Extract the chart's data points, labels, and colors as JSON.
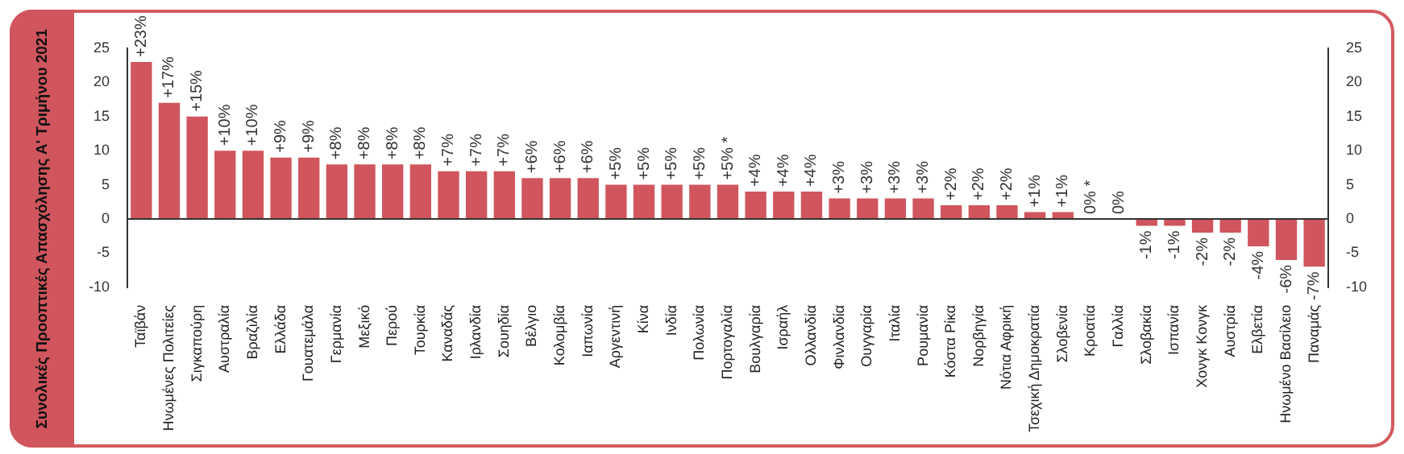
{
  "chart_data": {
    "type": "bar",
    "title": "Συνολικές Προοπτικές Απασχόλησης Α' Τριμήνου 2021",
    "categories": [
      "Ταϊβάν",
      "Ηνωμένες Πολιτείες",
      "Σιγκαπούρη",
      "Αυστραλία",
      "Βραζιλία",
      "Ελλάδα",
      "Γουατεμάλα",
      "Γερμανία",
      "Μεξικό",
      "Περού",
      "Τουρκία",
      "Καναδάς",
      "Ιρλανδία",
      "Σουηδία",
      "Βέλγιο",
      "Κολομβία",
      "Ιαπωνία",
      "Αργεντινή",
      "Κίνα",
      "Ινδία",
      "Πολωνία",
      "Πορτογαλία",
      "Βουλγαρία",
      "Ισραήλ",
      "Ολλανδία",
      "Φινλανδία",
      "Ουγγαρία",
      "Ιταλία",
      "Ρουμανία",
      "Κόστα Ρίκα",
      "Νορβηγία",
      "Νότια Αφρική",
      "Τσεχική Δημοκρατία",
      "Σλοβενία",
      "Κροατία",
      "Γαλλία",
      "Σλοβακία",
      "Ισπανία",
      "Χονγκ Κονγκ",
      "Αυστρία",
      "Ελβετία",
      "Ηνωμένο Βασίλειο",
      "Παναμάς"
    ],
    "values": [
      23,
      17,
      15,
      10,
      10,
      9,
      9,
      8,
      8,
      8,
      8,
      7,
      7,
      7,
      6,
      6,
      6,
      5,
      5,
      5,
      5,
      5,
      4,
      4,
      4,
      3,
      3,
      3,
      3,
      2,
      2,
      2,
      1,
      1,
      0,
      0,
      -1,
      -1,
      -2,
      -2,
      -4,
      -6,
      -7
    ],
    "value_labels": [
      "+23%",
      "+17%",
      "+15%",
      "+10%",
      "+10%",
      "+9%",
      "+9%",
      "+8%",
      "+8%",
      "+8%",
      "+8%",
      "+7%",
      "+7%",
      "+7%",
      "+6%",
      "+6%",
      "+6%",
      "+5%",
      "+5%",
      "+5%",
      "+5%",
      "+5% *",
      "+4%",
      "+4%",
      "+4%",
      "+3%",
      "+3%",
      "+3%",
      "+3%",
      "+2%",
      "+2%",
      "+2%",
      "+1%",
      "+1%",
      "0% *",
      "0%",
      "-1%",
      "-1%",
      "-2%",
      "-2%",
      "-4%",
      "-6%",
      "-7%"
    ],
    "color": "#d0555c",
    "ylim": [
      -10,
      25
    ],
    "yticks": [
      -10,
      -5,
      0,
      5,
      10,
      15,
      20,
      25
    ],
    "y2lim": [
      -10,
      25
    ],
    "y2ticks": [
      -10,
      -5,
      0,
      5,
      10,
      15,
      20,
      25
    ],
    "ref_lines": [
      {
        "axis": "y",
        "value": 0,
        "color": "#333333"
      }
    ],
    "grid": false,
    "legend": false
  }
}
